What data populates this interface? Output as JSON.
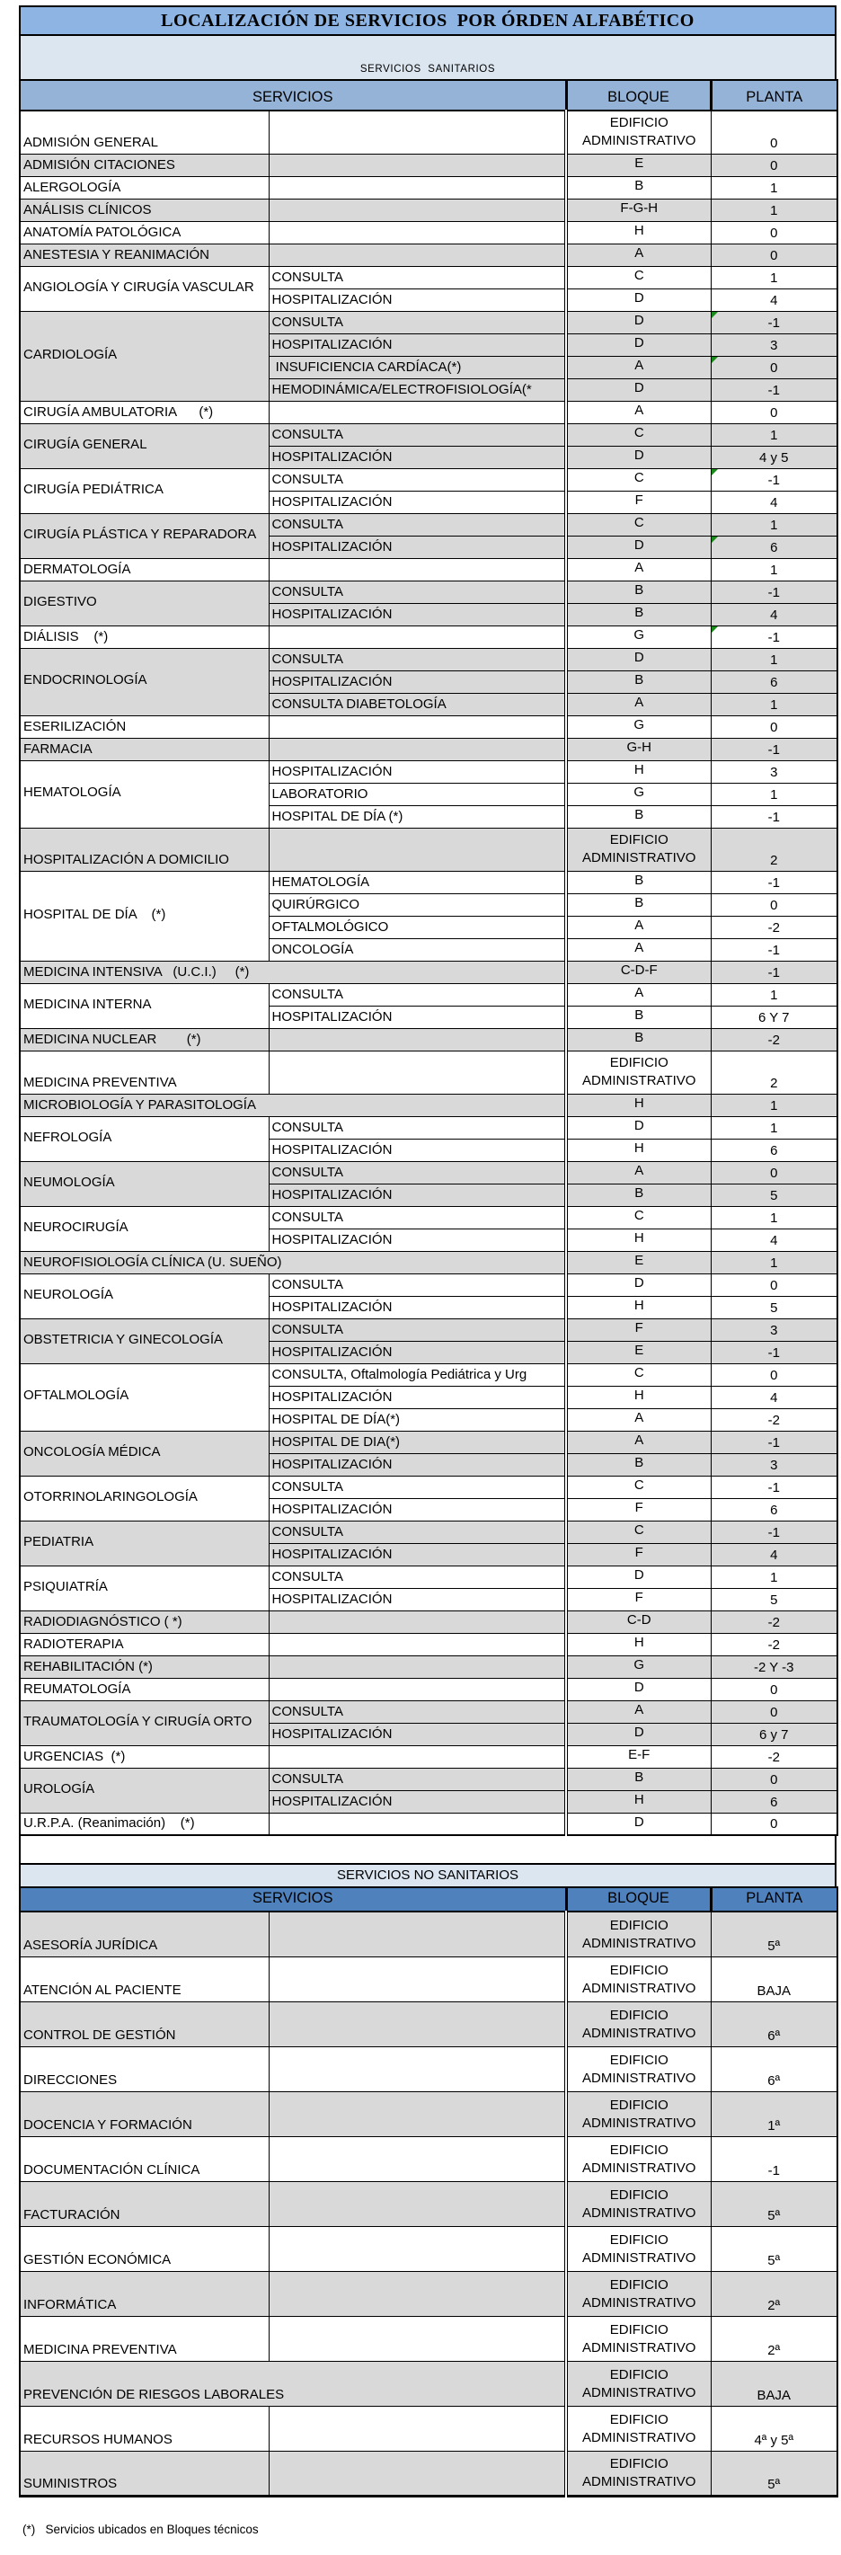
{
  "title": "LOCALIZACIÓN DE SERVICIOS  POR ÓRDEN ALFABÉTICO",
  "footnote": "(*)   Servicios ubicados en Bloques técnicos",
  "colors": {
    "title_band": "#8DB4E2",
    "light_band": "#DCE6F1",
    "header_section1": "#95B3D7",
    "header_section2": "#4F81BD",
    "gray_row": "#D9D9D9",
    "flag_green": "#1a8a1a"
  },
  "sections": [
    {
      "band_label": "SERVICIOS  SANITARIOS",
      "headers": {
        "servicios": "SERVICIOS",
        "bloque": "BLOQUE",
        "planta": "PLANTA"
      },
      "services": [
        {
          "name": "ADMISIÓN GENERAL",
          "shade": "w",
          "rows": [
            {
              "detail": "",
              "bloque": "EDIFICIO ADMINISTRATIVO",
              "planta": "0",
              "tall": true
            }
          ]
        },
        {
          "name": "ADMISIÓN CITACIONES",
          "shade": "g",
          "rows": [
            {
              "detail": "",
              "bloque": "E",
              "planta": "0"
            }
          ]
        },
        {
          "name": "ALERGOLOGÍA",
          "shade": "w",
          "rows": [
            {
              "detail": "",
              "bloque": "B",
              "planta": "1"
            }
          ]
        },
        {
          "name": "ANÁLISIS CLÍNICOS",
          "shade": "g",
          "rows": [
            {
              "detail": "",
              "bloque": "F-G-H",
              "planta": "1"
            }
          ]
        },
        {
          "name": "ANATOMÍA PATOLÓGICA",
          "shade": "w",
          "rows": [
            {
              "detail": "",
              "bloque": "H",
              "planta": "0"
            }
          ]
        },
        {
          "name": "ANESTESIA Y REANIMACIÓN",
          "shade": "g",
          "rows": [
            {
              "detail": "",
              "bloque": "A",
              "planta": "0"
            }
          ]
        },
        {
          "name": "ANGIOLOGÍA Y CIRUGÍA VASCULAR",
          "shade": "w",
          "rows": [
            {
              "detail": "CONSULTA",
              "bloque": "C",
              "planta": "1"
            },
            {
              "detail": "HOSPITALIZACIÓN",
              "bloque": "D",
              "planta": "4"
            }
          ]
        },
        {
          "name": "CARDIOLOGÍA",
          "shade": "g",
          "rows": [
            {
              "detail": "CONSULTA",
              "bloque": "D",
              "planta": "-1",
              "flag": true
            },
            {
              "detail": "HOSPITALIZACIÓN",
              "bloque": "D",
              "planta": "3"
            },
            {
              "detail": " INSUFICIENCIA CARDÍACA(*)",
              "bloque": "A",
              "planta": "0",
              "flag": true
            },
            {
              "detail": "HEMODINÁMICA/ELECTROFISIOLOGÍA(*",
              "bloque": "D",
              "planta": "-1"
            }
          ]
        },
        {
          "name": "CIRUGÍA AMBULATORIA      (*)",
          "shade": "w",
          "rows": [
            {
              "detail": "",
              "bloque": "A",
              "planta": "0"
            }
          ]
        },
        {
          "name": "CIRUGÍA GENERAL",
          "shade": "g",
          "rows": [
            {
              "detail": "CONSULTA",
              "bloque": "C",
              "planta": "1"
            },
            {
              "detail": "HOSPITALIZACIÓN",
              "bloque": "D",
              "planta": "4 y 5"
            }
          ]
        },
        {
          "name": "CIRUGÍA PEDIÁTRICA",
          "shade": "w",
          "rows": [
            {
              "detail": "CONSULTA",
              "bloque": "C",
              "planta": "-1",
              "flag": true
            },
            {
              "detail": "HOSPITALIZACIÓN",
              "bloque": "F",
              "planta": "4"
            }
          ]
        },
        {
          "name": "CIRUGÍA PLÁSTICA Y REPARADORA",
          "shade": "g",
          "rows": [
            {
              "detail": "CONSULTA",
              "bloque": "C",
              "planta": "1"
            },
            {
              "detail": "HOSPITALIZACIÓN",
              "bloque": "D",
              "planta": "6",
              "flag": true
            }
          ]
        },
        {
          "name": "DERMATOLOGÍA",
          "shade": "w",
          "rows": [
            {
              "detail": "",
              "bloque": "A",
              "planta": "1"
            }
          ]
        },
        {
          "name": "DIGESTIVO",
          "shade": "g",
          "rows": [
            {
              "detail": "CONSULTA",
              "bloque": "B",
              "planta": "-1"
            },
            {
              "detail": "HOSPITALIZACIÓN",
              "bloque": "B",
              "planta": "4"
            }
          ]
        },
        {
          "name": "DIÁLISIS    (*)",
          "shade": "w",
          "rows": [
            {
              "detail": "",
              "bloque": "G",
              "planta": "-1",
              "flag": true
            }
          ]
        },
        {
          "name": "ENDOCRINOLOGÍA",
          "shade": "g",
          "rows": [
            {
              "detail": "CONSULTA",
              "bloque": "D",
              "planta": "1"
            },
            {
              "detail": "HOSPITALIZACIÓN",
              "bloque": "B",
              "planta": "6"
            },
            {
              "detail": "CONSULTA DIABETOLOGÍA",
              "bloque": "A",
              "planta": "1"
            }
          ]
        },
        {
          "name": "ESERILIZACIÓN",
          "shade": "w",
          "rows": [
            {
              "detail": "",
              "bloque": "G",
              "planta": "0"
            }
          ]
        },
        {
          "name": "FARMACIA",
          "shade": "g",
          "rows": [
            {
              "detail": "",
              "bloque": "G-H",
              "planta": "-1"
            }
          ]
        },
        {
          "name": "HEMATOLOGÍA",
          "shade": "w",
          "rows": [
            {
              "detail": "HOSPITALIZACIÓN",
              "bloque": "H",
              "planta": "3"
            },
            {
              "detail": "LABORATORIO",
              "bloque": "G",
              "planta": "1"
            },
            {
              "detail": "HOSPITAL DE DÍA (*)",
              "bloque": "B",
              "planta": "-1"
            }
          ]
        },
        {
          "name": "HOSPITALIZACIÓN A DOMICILIO",
          "shade": "g",
          "rows": [
            {
              "detail": "",
              "bloque": "EDIFICIO ADMINISTRATIVO",
              "planta": "2",
              "tall": true
            }
          ]
        },
        {
          "name": "HOSPITAL DE DÍA    (*)",
          "shade": "w",
          "rows": [
            {
              "detail": "HEMATOLOGÍA",
              "bloque": "B",
              "planta": "-1"
            },
            {
              "detail": "QUIRÚRGICO",
              "bloque": "B",
              "planta": "0"
            },
            {
              "detail": "OFTALMOLÓGICO",
              "bloque": "A",
              "planta": "-2"
            },
            {
              "detail": "ONCOLOGÍA",
              "bloque": "A",
              "planta": "-1"
            }
          ]
        },
        {
          "name": "MEDICINA INTENSIVA   (U.C.I.)     (*)",
          "shade": "g",
          "merged": true,
          "rows": [
            {
              "bloque": "C-D-F",
              "planta": "-1"
            }
          ]
        },
        {
          "name": "MEDICINA INTERNA",
          "shade": "w",
          "rows": [
            {
              "detail": "CONSULTA",
              "bloque": "A",
              "planta": "1"
            },
            {
              "detail": "HOSPITALIZACIÓN",
              "bloque": "B",
              "planta": "6 Y 7"
            }
          ]
        },
        {
          "name": "MEDICINA NUCLEAR        (*)",
          "shade": "g",
          "rows": [
            {
              "detail": "",
              "bloque": "B",
              "planta": "-2"
            }
          ]
        },
        {
          "name": "MEDICINA PREVENTIVA",
          "shade": "w",
          "rows": [
            {
              "detail": "",
              "bloque": "EDIFICIO ADMINISTRATIVO",
              "planta": "2",
              "tall": true
            }
          ]
        },
        {
          "name": "MICROBIOLOGÍA Y PARASITOLOGÍA",
          "shade": "g",
          "merged": true,
          "rows": [
            {
              "bloque": "H",
              "planta": "1"
            }
          ]
        },
        {
          "name": "NEFROLOGÍA",
          "shade": "w",
          "rows": [
            {
              "detail": "CONSULTA",
              "bloque": "D",
              "planta": "1"
            },
            {
              "detail": "HOSPITALIZACIÓN",
              "bloque": "H",
              "planta": "6"
            }
          ]
        },
        {
          "name": "NEUMOLOGÍA",
          "shade": "g",
          "rows": [
            {
              "detail": "CONSULTA",
              "bloque": "A",
              "planta": "0"
            },
            {
              "detail": "HOSPITALIZACIÓN",
              "bloque": "B",
              "planta": "5"
            }
          ]
        },
        {
          "name": "NEUROCIRUGÍA",
          "shade": "w",
          "rows": [
            {
              "detail": "CONSULTA",
              "bloque": "C",
              "planta": "1"
            },
            {
              "detail": "HOSPITALIZACIÓN",
              "bloque": "H",
              "planta": "4"
            }
          ]
        },
        {
          "name": "NEUROFISIOLOGÍA CLÍNICA (U. SUEÑO)",
          "shade": "g",
          "merged": true,
          "rows": [
            {
              "bloque": "E",
              "planta": "1"
            }
          ]
        },
        {
          "name": "NEUROLOGÍA",
          "shade": "w",
          "rows": [
            {
              "detail": "CONSULTA",
              "bloque": "D",
              "planta": "0"
            },
            {
              "detail": "HOSPITALIZACIÓN",
              "bloque": "H",
              "planta": "5"
            }
          ]
        },
        {
          "name": "OBSTETRICIA Y GINECOLOGÍA",
          "shade": "g",
          "rows": [
            {
              "detail": "CONSULTA",
              "bloque": "F",
              "planta": "3"
            },
            {
              "detail": "HOSPITALIZACIÓN",
              "bloque": "E",
              "planta": "-1"
            }
          ]
        },
        {
          "name": "OFTALMOLOGÍA",
          "shade": "w",
          "rows": [
            {
              "detail": "CONSULTA, Oftalmología Pediátrica y Urg",
              "bloque": "C",
              "planta": "0"
            },
            {
              "detail": "HOSPITALIZACIÓN",
              "bloque": "H",
              "planta": "4"
            },
            {
              "detail": "HOSPITAL DE DÍA(*)",
              "bloque": "A",
              "planta": "-2"
            }
          ]
        },
        {
          "name": "ONCOLOGÍA MÉDICA",
          "shade": "g",
          "rows": [
            {
              "detail": "HOSPITAL DE DIA(*)",
              "bloque": "A",
              "planta": "-1"
            },
            {
              "detail": "HOSPITALIZACIÓN",
              "bloque": "B",
              "planta": "3"
            }
          ]
        },
        {
          "name": "OTORRINOLARINGOLOGÍA",
          "shade": "w",
          "rows": [
            {
              "detail": "CONSULTA",
              "bloque": "C",
              "planta": "-1"
            },
            {
              "detail": "HOSPITALIZACIÓN",
              "bloque": "F",
              "planta": "6"
            }
          ]
        },
        {
          "name": "PEDIATRIA",
          "shade": "g",
          "rows": [
            {
              "detail": "CONSULTA",
              "bloque": "C",
              "planta": "-1"
            },
            {
              "detail": "HOSPITALIZACIÓN",
              "bloque": "F",
              "planta": "4"
            }
          ]
        },
        {
          "name": "PSIQUIATRÍA",
          "shade": "w",
          "rows": [
            {
              "detail": "CONSULTA",
              "bloque": "D",
              "planta": "1"
            },
            {
              "detail": "HOSPITALIZACIÓN",
              "bloque": "F",
              "planta": "5"
            }
          ]
        },
        {
          "name": "RADIODIAGNÓSTICO ( *)",
          "shade": "g",
          "rows": [
            {
              "detail": "",
              "bloque": "C-D",
              "planta": "-2"
            }
          ]
        },
        {
          "name": "RADIOTERAPIA",
          "shade": "w",
          "rows": [
            {
              "detail": "",
              "bloque": "H",
              "planta": "-2"
            }
          ]
        },
        {
          "name": "REHABILITACIÓN (*)",
          "shade": "g",
          "rows": [
            {
              "detail": "",
              "bloque": "G",
              "planta": "-2 Y -3"
            }
          ]
        },
        {
          "name": "REUMATOLOGÍA",
          "shade": "w",
          "rows": [
            {
              "detail": "",
              "bloque": "D",
              "planta": "0"
            }
          ]
        },
        {
          "name": "TRAUMATOLOGÍA Y CIRUGÍA ORTO",
          "shade": "g",
          "rows": [
            {
              "detail": "CONSULTA",
              "bloque": "A",
              "planta": "0"
            },
            {
              "detail": "HOSPITALIZACIÓN",
              "bloque": "D",
              "planta": "6 y 7"
            }
          ]
        },
        {
          "name": "URGENCIAS  (*)",
          "shade": "w",
          "rows": [
            {
              "detail": "",
              "bloque": "E-F",
              "planta": "-2"
            }
          ]
        },
        {
          "name": "UROLOGÍA",
          "shade": "g",
          "rows": [
            {
              "detail": "CONSULTA",
              "bloque": "B",
              "planta": "0"
            },
            {
              "detail": "HOSPITALIZACIÓN",
              "bloque": "H",
              "planta": "6"
            }
          ]
        },
        {
          "name": "U.R.P.A. (Reanimación)    (*)",
          "shade": "w",
          "rows": [
            {
              "detail": "",
              "bloque": "D",
              "planta": "0"
            }
          ]
        }
      ]
    },
    {
      "band_label": "SERVICIOS NO SANITARIOS",
      "headers": {
        "servicios": "SERVICIOS",
        "bloque": "BLOQUE",
        "planta": "PLANTA"
      },
      "row_class": "h-s2",
      "services": [
        {
          "name": "ASESORÍA JURÍDICA",
          "shade": "g",
          "rows": [
            {
              "detail": "",
              "bloque": "EDIFICIO ADMINISTRATIVO",
              "planta": "5ª"
            }
          ]
        },
        {
          "name": "ATENCIÓN AL PACIENTE",
          "shade": "w",
          "rows": [
            {
              "detail": "",
              "bloque": "EDIFICIO ADMINISTRATIVO",
              "planta": "BAJA"
            }
          ]
        },
        {
          "name": "CONTROL DE GESTIÓN",
          "shade": "g",
          "rows": [
            {
              "detail": "",
              "bloque": "EDIFICIO ADMINISTRATIVO",
              "planta": "6ª"
            }
          ]
        },
        {
          "name": "DIRECCIONES",
          "shade": "w",
          "rows": [
            {
              "detail": "",
              "bloque": "EDIFICIO ADMINISTRATIVO",
              "planta": "6ª"
            }
          ]
        },
        {
          "name": "DOCENCIA Y FORMACIÓN",
          "shade": "g",
          "rows": [
            {
              "detail": "",
              "bloque": "EDIFICIO ADMINISTRATIVO",
              "planta": "1ª"
            }
          ]
        },
        {
          "name": "DOCUMENTACIÓN CLÍNICA",
          "shade": "w",
          "rows": [
            {
              "detail": "",
              "bloque": "EDIFICIO ADMINISTRATIVO",
              "planta": "-1"
            }
          ]
        },
        {
          "name": "FACTURACIÓN",
          "shade": "g",
          "rows": [
            {
              "detail": "",
              "bloque": "EDIFICIO ADMINISTRATIVO",
              "planta": "5ª"
            }
          ]
        },
        {
          "name": "GESTIÓN ECONÓMICA",
          "shade": "w",
          "rows": [
            {
              "detail": "",
              "bloque": "EDIFICIO ADMINISTRATIVO",
              "planta": "5ª"
            }
          ]
        },
        {
          "name": "INFORMÁTICA",
          "shade": "g",
          "rows": [
            {
              "detail": "",
              "bloque": "EDIFICIO ADMINISTRATIVO",
              "planta": "2ª"
            }
          ]
        },
        {
          "name": "MEDICINA PREVENTIVA",
          "shade": "w",
          "rows": [
            {
              "detail": "",
              "bloque": "EDIFICIO ADMINISTRATIVO",
              "planta": "2ª"
            }
          ]
        },
        {
          "name": "PREVENCIÓN DE RIESGOS LABORALES",
          "shade": "g",
          "merged": true,
          "rows": [
            {
              "bloque": "EDIFICIO ADMINISTRATIVO",
              "planta": "BAJA"
            }
          ]
        },
        {
          "name": "RECURSOS HUMANOS",
          "shade": "w",
          "rows": [
            {
              "detail": "",
              "bloque": "EDIFICIO ADMINISTRATIVO",
              "planta": "4ª  y 5ª"
            }
          ]
        },
        {
          "name": "SUMINISTROS",
          "shade": "g",
          "rows": [
            {
              "detail": "",
              "bloque": "EDIFICIO ADMINISTRATIVO",
              "planta": "5ª"
            }
          ]
        }
      ]
    }
  ]
}
